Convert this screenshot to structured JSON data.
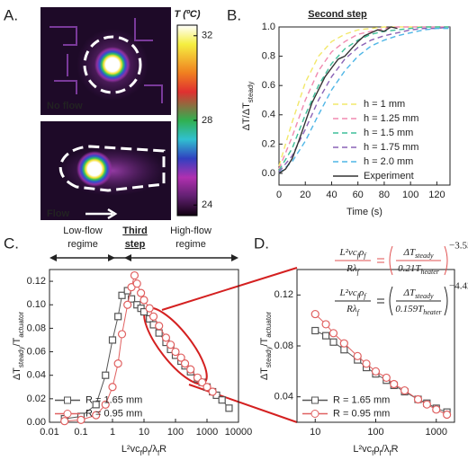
{
  "panel_labels": [
    "A.",
    "B.",
    "C.",
    "D."
  ],
  "panel_a": {
    "colorbar": {
      "title": "T (ºC)",
      "ticks": [
        32,
        28,
        24
      ],
      "lim": [
        23.5,
        32.5
      ]
    },
    "images": [
      "No flow",
      "Flow"
    ]
  },
  "chart_data": [
    {
      "type": "line",
      "title": "Second step",
      "xlabel": "Time (s)",
      "ylabel": [
        "ΔT/ΔT",
        "steady"
      ],
      "xlim": [
        0,
        130
      ],
      "xticks": [
        0,
        20,
        40,
        60,
        80,
        100,
        120
      ],
      "ylim": [
        -0.08,
        1.0
      ],
      "yticks": [
        {
          "value": 0,
          "label": "0.0"
        },
        0.2,
        0.4,
        0.6,
        0.8,
        {
          "value": 1,
          "label": "1.0"
        }
      ],
      "legend": "lower right",
      "x": [
        0,
        10,
        20,
        30,
        40,
        50,
        60,
        70,
        80,
        90,
        100,
        110,
        120,
        130
      ],
      "series": [
        {
          "name": "h = 1 mm",
          "color": "#f2e86a",
          "line_style": "dashed",
          "values": [
            0.05,
            0.35,
            0.62,
            0.8,
            0.9,
            0.95,
            0.98,
            0.99,
            1.0,
            1.0,
            1.0,
            1.0,
            1.0,
            1.0
          ]
        },
        {
          "name": "h = 1.25 mm",
          "color": "#f08ab0",
          "line_style": "dashed",
          "values": [
            0.03,
            0.25,
            0.5,
            0.7,
            0.83,
            0.9,
            0.95,
            0.97,
            0.99,
            1.0,
            1.0,
            1.0,
            1.0,
            1.0
          ]
        },
        {
          "name": "h = 1.5 mm",
          "color": "#3fbf9a",
          "line_style": "dashed",
          "values": [
            0.02,
            0.17,
            0.4,
            0.6,
            0.75,
            0.85,
            0.91,
            0.95,
            0.97,
            0.98,
            0.99,
            1.0,
            1.0,
            1.0
          ]
        },
        {
          "name": "h = 1.75 mm",
          "color": "#8a62b5",
          "line_style": "dashed",
          "values": [
            0.01,
            0.12,
            0.3,
            0.5,
            0.66,
            0.78,
            0.86,
            0.91,
            0.94,
            0.96,
            0.98,
            0.99,
            0.99,
            1.0
          ]
        },
        {
          "name": "h = 2.0 mm",
          "color": "#4fb6e6",
          "line_style": "dashed",
          "values": [
            0.0,
            0.08,
            0.22,
            0.4,
            0.57,
            0.7,
            0.8,
            0.87,
            0.91,
            0.94,
            0.96,
            0.98,
            0.99,
            0.99
          ]
        },
        {
          "name": "Experiment",
          "color": "#333333",
          "line_style": "solid",
          "x": [
            0,
            5,
            10,
            15,
            20,
            25,
            30,
            35,
            40,
            45,
            50,
            55,
            60,
            65,
            70,
            75,
            80,
            85,
            90
          ],
          "values": [
            0.0,
            0.03,
            0.1,
            0.22,
            0.35,
            0.48,
            0.57,
            0.66,
            0.72,
            0.78,
            0.8,
            0.85,
            0.9,
            0.94,
            0.96,
            0.98,
            0.97,
            1.0,
            0.99
          ]
        }
      ]
    },
    {
      "type": "line",
      "xscale": "log",
      "xlabel": [
        "L²vc",
        "f",
        "ρ",
        "f",
        "/λ",
        "f",
        "R"
      ],
      "ylabel": [
        "ΔT",
        "steady",
        "/T",
        "actuator"
      ],
      "xlim": [
        0.01,
        10000
      ],
      "xticks": [
        0.01,
        0.1,
        1,
        10,
        100,
        1000,
        10000
      ],
      "ylim": [
        0,
        0.13
      ],
      "yticks": [
        {
          "value": 0,
          "label": "0.00"
        },
        0.02,
        0.04,
        0.06,
        0.08,
        {
          "value": 0.1,
          "label": "0.10"
        },
        0.12
      ],
      "legend": "lower left",
      "annotations": {
        "low_flow": [
          "Low-flow",
          "regime"
        ],
        "third_step": [
          "Third",
          "step"
        ],
        "high_flow": [
          "High-flow",
          "regime"
        ]
      },
      "series": [
        {
          "name": "R = 1.65 mm",
          "color": "#555555",
          "marker": "square",
          "x": [
            0.03,
            0.1,
            0.3,
            0.6,
            1,
            1.5,
            2,
            3,
            4,
            6,
            8,
            10,
            15,
            20,
            30,
            50,
            70,
            100,
            150,
            200,
            300,
            500,
            700,
            1000,
            1500,
            2000,
            3000,
            5000
          ],
          "values": [
            0.003,
            0.005,
            0.015,
            0.04,
            0.07,
            0.09,
            0.108,
            0.112,
            0.105,
            0.1,
            0.097,
            0.094,
            0.088,
            0.083,
            0.076,
            0.068,
            0.062,
            0.057,
            0.052,
            0.048,
            0.043,
            0.037,
            0.034,
            0.03,
            0.026,
            0.023,
            0.019,
            0.012
          ]
        },
        {
          "name": "R = 0.95 mm",
          "color": "#e06060",
          "marker": "circle",
          "x": [
            0.03,
            0.1,
            0.3,
            0.6,
            1,
            1.5,
            2,
            3,
            4,
            5,
            6,
            8,
            10,
            15,
            20,
            30,
            50,
            70,
            100,
            150,
            200,
            300,
            500,
            700,
            1000,
            1500
          ],
          "values": [
            0.001,
            0.002,
            0.006,
            0.015,
            0.03,
            0.05,
            0.075,
            0.1,
            0.115,
            0.125,
            0.118,
            0.11,
            0.104,
            0.097,
            0.09,
            0.082,
            0.072,
            0.066,
            0.06,
            0.055,
            0.05,
            0.045,
            0.038,
            0.034,
            0.03,
            0.026
          ]
        }
      ]
    },
    {
      "type": "line",
      "xscale": "log",
      "xlabel": [
        "L²vc",
        "f",
        "ρ",
        "f",
        "/λ",
        "f",
        "R"
      ],
      "ylabel": [
        "ΔT",
        "steady",
        "/T",
        "actuator"
      ],
      "xlim": [
        5,
        2000
      ],
      "xticks": [
        10,
        100,
        1000
      ],
      "ylim": [
        0.02,
        0.14
      ],
      "yticks": [
        0.04,
        0.08,
        0.12
      ],
      "legend": "lower left",
      "equations": [
        {
          "color": "#e05050",
          "lhs_num": [
            "L²vc",
            "f",
            "ρ",
            "f"
          ],
          "lhs_den": [
            "Rλ",
            "f"
          ],
          "rhs_num": [
            "ΔT",
            "steady"
          ],
          "rhs_den": [
            "0.21T",
            "heater"
          ],
          "exponent": "−3.55"
        },
        {
          "color": "#222222",
          "lhs_num": [
            "L²vc",
            "f",
            "ρ",
            "f"
          ],
          "lhs_den": [
            "Rλ",
            "f"
          ],
          "rhs_num": [
            "ΔT",
            "steady"
          ],
          "rhs_den": [
            "0.159T",
            "heater"
          ],
          "exponent": "−4.42"
        }
      ],
      "series": [
        {
          "name": "R = 1.65 mm",
          "color": "#555555",
          "marker": "square",
          "x": [
            10,
            15,
            20,
            30,
            50,
            70,
            100,
            150,
            200,
            300,
            500,
            700,
            1000,
            1500
          ],
          "values": [
            0.092,
            0.088,
            0.083,
            0.077,
            0.069,
            0.063,
            0.058,
            0.053,
            0.049,
            0.044,
            0.038,
            0.035,
            0.031,
            0.028
          ]
        },
        {
          "name": "R = 0.95 mm",
          "color": "#e06060",
          "marker": "circle",
          "x": [
            10,
            15,
            20,
            30,
            50,
            70,
            100,
            150,
            200,
            300,
            500,
            700,
            1000,
            1500
          ],
          "values": [
            0.105,
            0.097,
            0.09,
            0.082,
            0.072,
            0.066,
            0.06,
            0.055,
            0.05,
            0.045,
            0.038,
            0.034,
            0.03,
            0.026
          ]
        }
      ]
    }
  ]
}
